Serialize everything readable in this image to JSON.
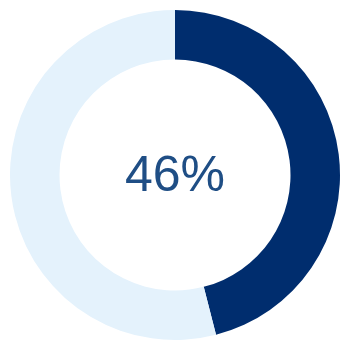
{
  "chart_data": {
    "type": "doughnut",
    "categories": [
      null,
      null
    ],
    "values": [
      46,
      54
    ],
    "value_labels": [
      "46%",
      null
    ],
    "colors": [
      "#002d6e",
      "#e4f2fc"
    ]
  }
}
